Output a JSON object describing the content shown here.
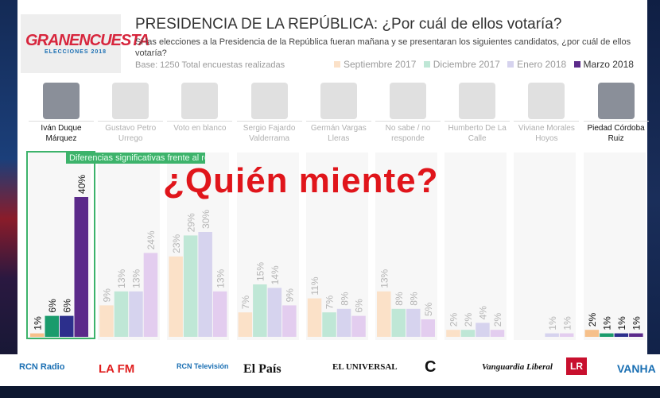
{
  "header": {
    "logo_text": "GRANENCUESTA",
    "logo_sub": "ELECCIONES 2018",
    "title": "PRESIDENCIA DE LA REPÚBLICA: ¿Por cuál de ellos votaría?",
    "subtitle": "Si las elecciones a la Presidencia de la República fueran mañana y se presentaran los siguientes candidatos, ¿por cuál de ellos votaría?",
    "base": "Base: 1250 Total encuestas realizadas"
  },
  "overlay_text": "¿Quién miente?",
  "diff_label": "Diferencias significativas frente al resto de candidatos",
  "candidates": [
    {
      "name": "Iván Duque Márquez",
      "highlight": true
    },
    {
      "name": "Gustavo Petro Urrego",
      "highlight": false
    },
    {
      "name": "Voto en blanco",
      "highlight": false
    },
    {
      "name": "Sergio Fajardo Valderrama",
      "highlight": false
    },
    {
      "name": "Germán Vargas Lleras",
      "highlight": false
    },
    {
      "name": "No sabe / no responde",
      "highlight": false
    },
    {
      "name": "Humberto De La Calle",
      "highlight": false
    },
    {
      "name": "Viviane Morales Hoyos",
      "highlight": false
    },
    {
      "name": "Piedad Córdoba Ruiz",
      "highlight": true
    }
  ],
  "chart_data": {
    "type": "bar",
    "categories": [
      "Iván Duque Márquez",
      "Gustavo Petro Urrego",
      "Voto en blanco",
      "Sergio Fajardo Valderrama",
      "Germán Vargas Lleras",
      "No sabe / no responde",
      "Humberto De La Calle",
      "Viviane Morales Hoyos",
      "Piedad Córdoba Ruiz"
    ],
    "series": [
      {
        "name": "Septiembre 2017",
        "color": "#f6c08a",
        "faded": "#fbe1c8",
        "values": [
          1,
          9,
          23,
          7,
          11,
          13,
          2,
          null,
          2
        ]
      },
      {
        "name": "Diciembre 2017",
        "color": "#1a9b6c",
        "faded": "#bfe7d6",
        "values": [
          6,
          13,
          29,
          15,
          7,
          8,
          2,
          null,
          1
        ]
      },
      {
        "name": "Enero 2018",
        "color": "#2c2f8c",
        "faded": "#d6d3ee",
        "values": [
          6,
          13,
          30,
          14,
          8,
          8,
          4,
          1,
          1
        ]
      },
      {
        "name": "Marzo 2018",
        "color": "#5b2a8a",
        "faded": "#e3cdef",
        "values": [
          40,
          24,
          13,
          9,
          6,
          5,
          2,
          1,
          1
        ]
      }
    ],
    "labels": [
      [
        "1%",
        "6%",
        "6%",
        "40%"
      ],
      [
        "9%",
        "13%",
        "13%",
        "24%"
      ],
      [
        "23%",
        "29%",
        "30%",
        "13%"
      ],
      [
        "7%",
        "15%",
        "14%",
        "9%"
      ],
      [
        "11%",
        "7%",
        "8%",
        "6%"
      ],
      [
        "13%",
        "8%",
        "8%",
        "5%"
      ],
      [
        "2%",
        "2%",
        "4%",
        "2%"
      ],
      [
        "",
        "",
        "1%",
        "1%"
      ],
      [
        "2%",
        "1%",
        "1%",
        "1%"
      ]
    ],
    "ylim": [
      0,
      40
    ],
    "highlight_categories": [
      0,
      8
    ]
  },
  "media_logos": [
    "RCN Radio",
    "LA FM",
    "RCN Televisión",
    "El País",
    "EL UNIVERSAL",
    "C",
    "Vanguardia Liberal",
    "LR",
    "VANHA"
  ]
}
